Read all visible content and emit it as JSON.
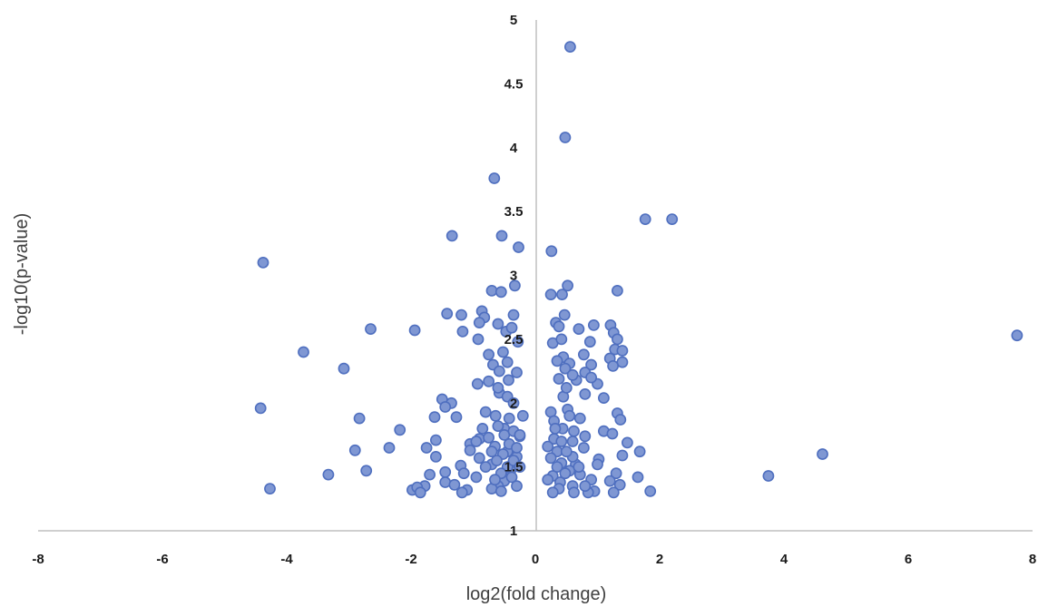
{
  "chart_data": {
    "type": "scatter",
    "title": "",
    "xlabel": "log2(fold change)",
    "ylabel": "-log10(p-value)",
    "xlim": [
      -8,
      8
    ],
    "ylim": [
      1,
      5
    ],
    "x_ticks": [
      "-8",
      "-6",
      "-4",
      "-2",
      "0",
      "2",
      "4",
      "6",
      "8"
    ],
    "y_ticks": [
      "1",
      "1.5",
      "2",
      "2.5",
      "3",
      "3.5",
      "4",
      "4.5",
      "5"
    ],
    "grid": false,
    "colors": {
      "marker_fill": "#7f97d3",
      "marker_edge": "#4f6fbf",
      "axis": "#bfbfbf"
    },
    "points": [
      [
        0.56,
        4.79
      ],
      [
        0.48,
        4.08
      ],
      [
        -0.66,
        3.76
      ],
      [
        1.77,
        3.44
      ],
      [
        2.2,
        3.44
      ],
      [
        -1.34,
        3.31
      ],
      [
        -0.54,
        3.31
      ],
      [
        -0.27,
        3.22
      ],
      [
        0.26,
        3.19
      ],
      [
        -4.38,
        3.1
      ],
      [
        -0.33,
        2.92
      ],
      [
        0.52,
        2.92
      ],
      [
        -0.7,
        2.88
      ],
      [
        -0.55,
        2.87
      ],
      [
        0.25,
        2.85
      ],
      [
        0.43,
        2.85
      ],
      [
        1.32,
        2.88
      ],
      [
        -1.42,
        2.7
      ],
      [
        -1.19,
        2.69
      ],
      [
        -0.86,
        2.72
      ],
      [
        -0.82,
        2.67
      ],
      [
        -0.35,
        2.69
      ],
      [
        0.47,
        2.69
      ],
      [
        -0.6,
        2.62
      ],
      [
        -0.9,
        2.63
      ],
      [
        0.33,
        2.63
      ],
      [
        0.94,
        2.61
      ],
      [
        1.21,
        2.61
      ],
      [
        -2.65,
        2.58
      ],
      [
        -1.94,
        2.57
      ],
      [
        -1.17,
        2.56
      ],
      [
        -0.47,
        2.56
      ],
      [
        -0.38,
        2.59
      ],
      [
        0.38,
        2.6
      ],
      [
        0.7,
        2.58
      ],
      [
        1.26,
        2.55
      ],
      [
        7.75,
        2.53
      ],
      [
        -0.92,
        2.5
      ],
      [
        -0.28,
        2.48
      ],
      [
        0.28,
        2.47
      ],
      [
        0.42,
        2.5
      ],
      [
        0.88,
        2.48
      ],
      [
        1.32,
        2.5
      ],
      [
        -3.73,
        2.4
      ],
      [
        -0.75,
        2.38
      ],
      [
        -0.52,
        2.4
      ],
      [
        0.45,
        2.36
      ],
      [
        0.78,
        2.38
      ],
      [
        1.28,
        2.42
      ],
      [
        1.4,
        2.41
      ],
      [
        -0.68,
        2.3
      ],
      [
        -0.45,
        2.32
      ],
      [
        0.35,
        2.33
      ],
      [
        0.55,
        2.31
      ],
      [
        0.9,
        2.3
      ],
      [
        1.2,
        2.35
      ],
      [
        1.4,
        2.32
      ],
      [
        -3.08,
        2.27
      ],
      [
        -0.58,
        2.25
      ],
      [
        -0.3,
        2.24
      ],
      [
        0.48,
        2.27
      ],
      [
        0.8,
        2.24
      ],
      [
        1.25,
        2.29
      ],
      [
        -0.93,
        2.15
      ],
      [
        -0.75,
        2.17
      ],
      [
        -0.43,
        2.18
      ],
      [
        0.38,
        2.19
      ],
      [
        0.66,
        2.18
      ],
      [
        1.0,
        2.15
      ],
      [
        -1.5,
        2.03
      ],
      [
        -1.35,
        2.0
      ],
      [
        -0.58,
        2.08
      ],
      [
        0.45,
        2.05
      ],
      [
        0.8,
        2.07
      ],
      [
        1.1,
        2.04
      ],
      [
        -4.42,
        1.96
      ],
      [
        -1.62,
        1.89
      ],
      [
        -1.45,
        1.97
      ],
      [
        -0.8,
        1.93
      ],
      [
        0.25,
        1.93
      ],
      [
        0.52,
        1.95
      ],
      [
        1.32,
        1.92
      ],
      [
        -2.83,
        1.88
      ],
      [
        -1.27,
        1.89
      ],
      [
        -0.64,
        1.9
      ],
      [
        0.3,
        1.86
      ],
      [
        0.72,
        1.88
      ],
      [
        1.37,
        1.87
      ],
      [
        -2.18,
        1.79
      ],
      [
        -0.5,
        1.8
      ],
      [
        0.44,
        1.8
      ],
      [
        1.1,
        1.78
      ],
      [
        1.24,
        1.76
      ],
      [
        -1.6,
        1.71
      ],
      [
        -0.9,
        1.72
      ],
      [
        -0.25,
        1.74
      ],
      [
        0.3,
        1.72
      ],
      [
        0.8,
        1.74
      ],
      [
        1.48,
        1.69
      ],
      [
        -2.35,
        1.65
      ],
      [
        -1.75,
        1.65
      ],
      [
        -1.05,
        1.68
      ],
      [
        -0.65,
        1.66
      ],
      [
        0.2,
        1.66
      ],
      [
        0.6,
        1.7
      ],
      [
        1.68,
        1.62
      ],
      [
        -2.9,
        1.63
      ],
      [
        -1.05,
        1.63
      ],
      [
        -0.45,
        1.62
      ],
      [
        0.35,
        1.62
      ],
      [
        0.78,
        1.65
      ],
      [
        1.4,
        1.59
      ],
      [
        4.62,
        1.6
      ],
      [
        -1.6,
        1.58
      ],
      [
        -0.9,
        1.57
      ],
      [
        -0.3,
        1.58
      ],
      [
        0.25,
        1.57
      ],
      [
        1.02,
        1.56
      ],
      [
        -1.2,
        1.51
      ],
      [
        -0.7,
        1.52
      ],
      [
        0.42,
        1.53
      ],
      [
        0.65,
        1.52
      ],
      [
        1.0,
        1.52
      ],
      [
        -2.72,
        1.47
      ],
      [
        -1.45,
        1.46
      ],
      [
        -1.15,
        1.45
      ],
      [
        -0.4,
        1.47
      ],
      [
        0.55,
        1.47
      ],
      [
        1.3,
        1.45
      ],
      [
        -3.33,
        1.44
      ],
      [
        -1.7,
        1.44
      ],
      [
        -0.95,
        1.42
      ],
      [
        0.28,
        1.43
      ],
      [
        0.72,
        1.44
      ],
      [
        1.65,
        1.42
      ],
      [
        3.75,
        1.43
      ],
      [
        -1.45,
        1.38
      ],
      [
        -0.5,
        1.39
      ],
      [
        0.4,
        1.38
      ],
      [
        1.2,
        1.39
      ],
      [
        -1.78,
        1.35
      ],
      [
        -1.3,
        1.36
      ],
      [
        -0.6,
        1.35
      ],
      [
        0.6,
        1.35
      ],
      [
        1.36,
        1.36
      ],
      [
        -4.27,
        1.33
      ],
      [
        -1.98,
        1.32
      ],
      [
        -1.9,
        1.34
      ],
      [
        -1.1,
        1.32
      ],
      [
        -0.7,
        1.33
      ],
      [
        0.38,
        1.33
      ],
      [
        0.95,
        1.31
      ],
      [
        1.85,
        1.31
      ],
      [
        -1.85,
        1.3
      ],
      [
        -1.18,
        1.3
      ],
      [
        -0.55,
        1.31
      ],
      [
        0.28,
        1.3
      ],
      [
        0.62,
        1.3
      ],
      [
        0.85,
        1.3
      ],
      [
        1.26,
        1.3
      ],
      [
        -0.45,
        1.5
      ],
      [
        -0.35,
        1.55
      ],
      [
        -0.25,
        1.5
      ],
      [
        -0.55,
        1.45
      ],
      [
        -0.38,
        1.42
      ],
      [
        -0.52,
        1.6
      ],
      [
        -0.42,
        1.68
      ],
      [
        -0.3,
        1.65
      ],
      [
        -0.62,
        1.55
      ],
      [
        -0.7,
        1.62
      ],
      [
        -0.5,
        1.75
      ],
      [
        -0.35,
        1.78
      ],
      [
        -0.6,
        1.82
      ],
      [
        -0.42,
        1.88
      ],
      [
        -0.75,
        1.73
      ],
      [
        0.35,
        1.5
      ],
      [
        0.48,
        1.45
      ],
      [
        0.6,
        1.58
      ],
      [
        0.5,
        1.62
      ],
      [
        0.42,
        1.7
      ],
      [
        0.62,
        1.78
      ],
      [
        0.32,
        1.8
      ],
      [
        0.55,
        1.9
      ],
      [
        0.7,
        1.5
      ],
      [
        0.9,
        1.4
      ],
      [
        -0.85,
        1.8
      ],
      [
        -0.95,
        1.7
      ],
      [
        -0.8,
        1.5
      ],
      [
        -0.65,
        1.4
      ],
      [
        -0.3,
        1.35
      ],
      [
        0.2,
        1.4
      ],
      [
        0.8,
        1.35
      ],
      [
        -0.45,
        2.05
      ],
      [
        -0.6,
        2.12
      ],
      [
        -0.35,
        2.0
      ],
      [
        0.5,
        2.12
      ],
      [
        0.6,
        2.22
      ],
      [
        0.9,
        2.2
      ],
      [
        -0.2,
        1.9
      ],
      [
        -0.25,
        1.75
      ]
    ]
  }
}
